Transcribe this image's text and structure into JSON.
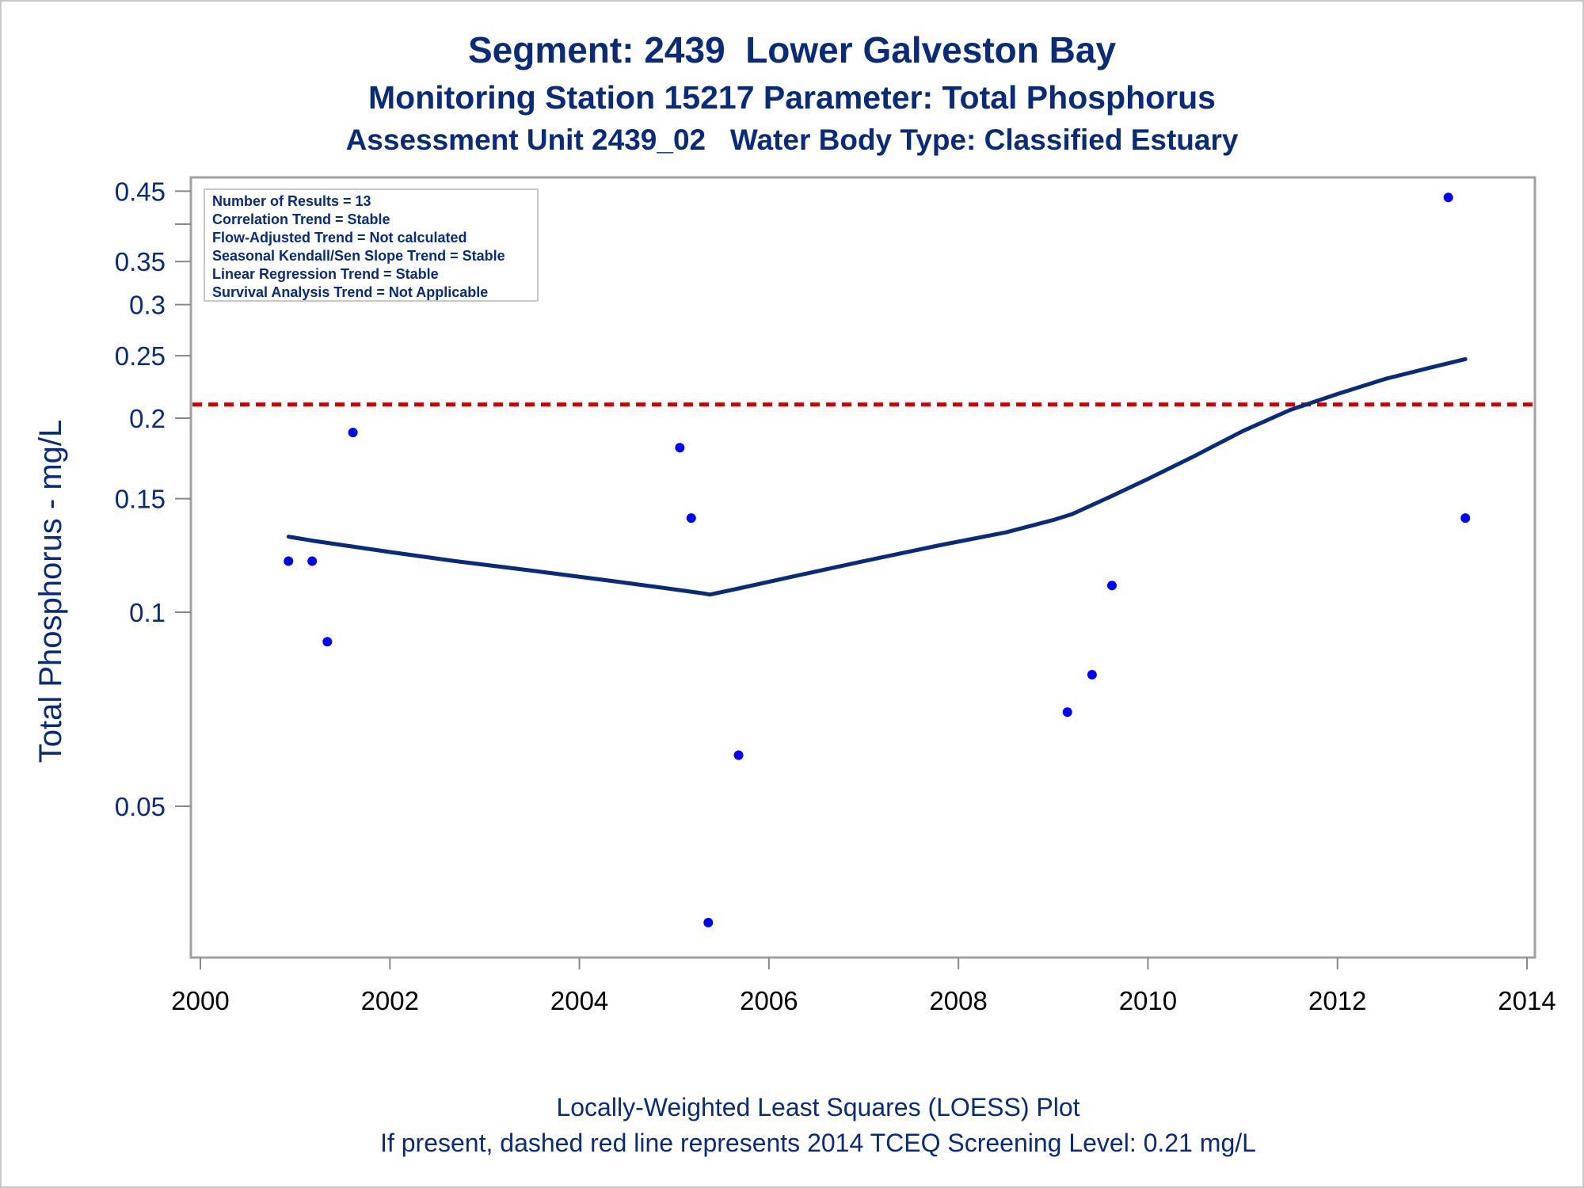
{
  "titles": {
    "line1": "Segment: 2439  Lower Galveston Bay",
    "line2": "Monitoring Station 15217 Parameter: Total Phosphorus",
    "line3": "Assessment Unit 2439_02   Water Body Type: Classified Estuary"
  },
  "footnotes": {
    "line1": "Locally-Weighted Least Squares (LOESS) Plot",
    "line2": "If present, dashed red line represents 2014 TCEQ Screening Level: 0.21 mg/L"
  },
  "info_box": [
    "Number of Results = 13",
    "Correlation Trend = Stable",
    "Flow-Adjusted Trend = Not calculated",
    "Seasonal Kendall/Sen Slope Trend = Stable",
    "Linear Regression Trend = Stable",
    "Survival Analysis Trend = Not Applicable"
  ],
  "colors": {
    "title": "#0a2a7a",
    "points": "#0000ff",
    "loess": "#0a2a7a",
    "screening": "#cc0000",
    "frame": "#a0a0a0"
  },
  "chart_data": {
    "type": "scatter",
    "xlabel": "",
    "ylabel": "Total Phosphorus - mg/L",
    "y_scale": "log",
    "xlim": [
      2000,
      2014
    ],
    "ylim": [
      0.032,
      0.46
    ],
    "x_ticks": [
      "2000",
      "2002",
      "2004",
      "2006",
      "2008",
      "2010",
      "2012",
      "2014"
    ],
    "y_ticks": [
      "0.05",
      "0.1",
      "0.15",
      "0.2",
      "0.25",
      "0.3",
      "0.35",
      "0.45"
    ],
    "points": [
      {
        "x": 2000.93,
        "y": 0.12
      },
      {
        "x": 2001.18,
        "y": 0.12
      },
      {
        "x": 2001.34,
        "y": 0.09
      },
      {
        "x": 2001.61,
        "y": 0.19
      },
      {
        "x": 2005.06,
        "y": 0.18
      },
      {
        "x": 2005.18,
        "y": 0.14
      },
      {
        "x": 2005.36,
        "y": 0.033
      },
      {
        "x": 2005.68,
        "y": 0.06
      },
      {
        "x": 2009.15,
        "y": 0.07
      },
      {
        "x": 2009.41,
        "y": 0.08
      },
      {
        "x": 2009.62,
        "y": 0.11
      },
      {
        "x": 2013.17,
        "y": 0.44
      },
      {
        "x": 2013.35,
        "y": 0.14
      }
    ],
    "loess": {
      "x": [
        2000.93,
        2001.2,
        2002.0,
        2002.7,
        2003.5,
        2004.3,
        2004.9,
        2005.3,
        2005.38,
        2005.7,
        2006.3,
        2007.0,
        2007.8,
        2008.5,
        2009.0,
        2009.2,
        2009.6,
        2010.0,
        2010.5,
        2011.0,
        2011.5,
        2012.0,
        2012.5,
        2013.0,
        2013.35
      ],
      "y": [
        0.131,
        0.129,
        0.124,
        0.12,
        0.116,
        0.112,
        0.109,
        0.107,
        0.1065,
        0.109,
        0.114,
        0.12,
        0.127,
        0.133,
        0.139,
        0.142,
        0.151,
        0.161,
        0.175,
        0.191,
        0.206,
        0.218,
        0.23,
        0.24,
        0.247
      ]
    },
    "screening_level": 0.21,
    "grid": false,
    "legend": "top-left"
  }
}
